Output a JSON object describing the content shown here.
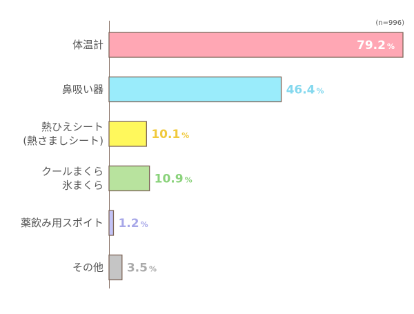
{
  "chart_data": {
    "type": "bar",
    "orientation": "horizontal",
    "note": "(n=996)",
    "unit": "%",
    "categories": [
      [
        "体温計"
      ],
      [
        "鼻吸い器"
      ],
      [
        "熱ひえシート",
        "(熱さましシート)"
      ],
      [
        "クールまくら",
        "氷まくら"
      ],
      [
        "薬飲み用スポイト"
      ],
      [
        "その他"
      ]
    ],
    "values": [
      79.2,
      46.4,
      10.1,
      10.9,
      1.2,
      3.5
    ],
    "value_labels": [
      "79.2",
      "46.4",
      "10.1",
      "10.9",
      "1.2",
      "3.5"
    ],
    "colors": [
      "#ffa7b4",
      "#9aecfb",
      "#fff85c",
      "#b8e39e",
      "#c3c3f6",
      "#c5c5c5"
    ],
    "label_colors": [
      "#ffffff",
      "#84d8ee",
      "#f0c93c",
      "#8ad27b",
      "#a7a7e8",
      "#aaaaaa"
    ],
    "xlim": [
      0,
      79.2
    ],
    "grid": false,
    "legend": "none"
  }
}
